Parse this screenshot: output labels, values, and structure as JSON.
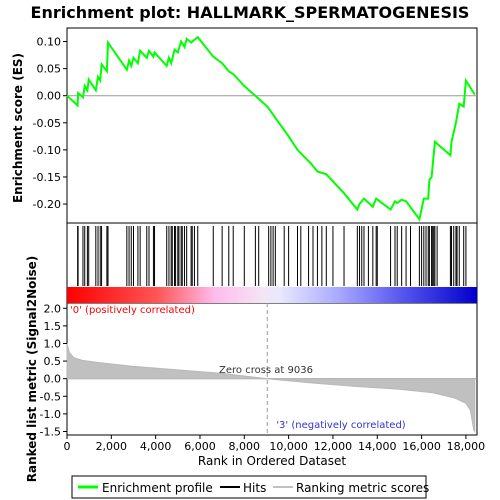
{
  "chart_data": {
    "type": "line",
    "title": "Enrichment plot: HALLMARK_SPERMATOGENESIS",
    "xlabel": "Rank in Ordered Dataset",
    "xlim": [
      0,
      18500
    ],
    "x_ticks": [
      "0",
      "2,000",
      "4,000",
      "6,000",
      "8,000",
      "10,000",
      "12,000",
      "14,000",
      "16,000",
      "18,000"
    ],
    "x_tick_values": [
      0,
      2000,
      4000,
      6000,
      8000,
      10000,
      12000,
      14000,
      16000,
      18000
    ],
    "es_panel": {
      "ylabel": "Enrichment score (ES)",
      "ylim": [
        -0.235,
        0.125
      ],
      "y_ticks": [
        "0.10",
        "0.05",
        "0.00",
        "-0.05",
        "-0.10",
        "-0.15",
        "-0.20"
      ],
      "y_tick_values": [
        0.1,
        0.05,
        0.0,
        -0.05,
        -0.1,
        -0.15,
        -0.2
      ],
      "grid": false,
      "series": [
        {
          "name": "Enrichment profile",
          "color": "#00ff00",
          "points": [
            [
              0,
              0.0
            ],
            [
              480,
              -0.018
            ],
            [
              500,
              0.005
            ],
            [
              720,
              -0.003
            ],
            [
              800,
              0.018
            ],
            [
              920,
              0.01
            ],
            [
              980,
              0.03
            ],
            [
              1300,
              0.01
            ],
            [
              1400,
              0.035
            ],
            [
              1500,
              0.028
            ],
            [
              1560,
              0.058
            ],
            [
              1800,
              0.045
            ],
            [
              1850,
              0.098
            ],
            [
              2700,
              0.048
            ],
            [
              2800,
              0.065
            ],
            [
              2900,
              0.055
            ],
            [
              3000,
              0.07
            ],
            [
              3200,
              0.06
            ],
            [
              3300,
              0.083
            ],
            [
              3600,
              0.07
            ],
            [
              3700,
              0.083
            ],
            [
              3900,
              0.072
            ],
            [
              3950,
              0.08
            ],
            [
              4500,
              0.055
            ],
            [
              4600,
              0.07
            ],
            [
              4700,
              0.06
            ],
            [
              4850,
              0.085
            ],
            [
              5000,
              0.08
            ],
            [
              5150,
              0.1
            ],
            [
              5300,
              0.09
            ],
            [
              5400,
              0.105
            ],
            [
              5600,
              0.098
            ],
            [
              5650,
              0.1
            ],
            [
              5900,
              0.108
            ],
            [
              6600,
              0.072
            ],
            [
              7000,
              0.06
            ],
            [
              7300,
              0.045
            ],
            [
              7500,
              0.04
            ],
            [
              8000,
              0.018
            ],
            [
              9036,
              -0.02
            ],
            [
              10000,
              -0.075
            ],
            [
              10400,
              -0.1
            ],
            [
              11000,
              -0.125
            ],
            [
              11300,
              -0.14
            ],
            [
              11700,
              -0.145
            ],
            [
              12500,
              -0.18
            ],
            [
              13100,
              -0.21
            ],
            [
              13200,
              -0.2
            ],
            [
              13400,
              -0.19
            ],
            [
              13800,
              -0.205
            ],
            [
              13950,
              -0.19
            ],
            [
              14600,
              -0.21
            ],
            [
              14800,
              -0.195
            ],
            [
              14900,
              -0.198
            ],
            [
              15100,
              -0.192
            ],
            [
              15300,
              -0.195
            ],
            [
              15900,
              -0.228
            ],
            [
              16100,
              -0.19
            ],
            [
              16300,
              -0.19
            ],
            [
              16350,
              -0.155
            ],
            [
              16450,
              -0.15
            ],
            [
              16600,
              -0.085
            ],
            [
              17300,
              -0.11
            ],
            [
              17350,
              -0.085
            ],
            [
              17550,
              -0.05
            ],
            [
              17700,
              -0.015
            ],
            [
              17900,
              -0.02
            ],
            [
              18000,
              0.028
            ],
            [
              18400,
              0.002
            ]
          ]
        }
      ]
    },
    "hits": {
      "name": "Hits",
      "color": "#000000",
      "positions": [
        480,
        500,
        720,
        800,
        920,
        980,
        1300,
        1400,
        1500,
        1560,
        1800,
        1850,
        2700,
        2800,
        2900,
        3000,
        3200,
        3300,
        3600,
        3700,
        3900,
        3950,
        4500,
        4600,
        4700,
        4750,
        4850,
        4900,
        5000,
        5050,
        5150,
        5200,
        5300,
        5400,
        5600,
        5650,
        5750,
        5900,
        6600,
        7000,
        7300,
        7500,
        8000,
        8500,
        8650,
        9100,
        9200,
        9300,
        9400,
        9800,
        10000,
        10400,
        10550,
        10900,
        11100,
        11300,
        11500,
        11700,
        12000,
        12500,
        13100,
        13200,
        13300,
        13400,
        13600,
        13800,
        13950,
        14000,
        14600,
        14800,
        14900,
        15100,
        15300,
        15500,
        15900,
        16000,
        16100,
        16200,
        16300,
        16350,
        16450,
        16500,
        16550,
        16600,
        16700,
        17300,
        17350,
        17450,
        17550,
        17600,
        17700,
        17900,
        18000
      ]
    },
    "ranking_panel": {
      "ylabel": "Ranked list metric (Signal2Noise)",
      "ylim": [
        -1.6,
        2.15
      ],
      "y_ticks": [
        "2.0",
        "1.5",
        "1.0",
        "0.5",
        "0.0",
        "-0.5",
        "-1.0",
        "-1.5"
      ],
      "y_tick_values": [
        2.0,
        1.5,
        1.0,
        0.5,
        0.0,
        -0.5,
        -1.0,
        -1.5
      ],
      "series": [
        {
          "name": "Ranking metric scores",
          "color": "#c0c0c0",
          "points": [
            [
              0,
              1.0
            ],
            [
              100,
              0.75
            ],
            [
              300,
              0.6
            ],
            [
              700,
              0.52
            ],
            [
              1500,
              0.45
            ],
            [
              3000,
              0.35
            ],
            [
              5000,
              0.25
            ],
            [
              7000,
              0.15
            ],
            [
              9036,
              0.0
            ],
            [
              11000,
              -0.12
            ],
            [
              13000,
              -0.22
            ],
            [
              15000,
              -0.3
            ],
            [
              16500,
              -0.4
            ],
            [
              17500,
              -0.55
            ],
            [
              18000,
              -0.7
            ],
            [
              18200,
              -0.9
            ],
            [
              18350,
              -1.45
            ],
            [
              18400,
              -1.5
            ]
          ]
        }
      ],
      "zero_cross_label": "Zero cross at 9036",
      "zero_cross": 9036,
      "pos_label": "'0' (positively correlated)",
      "neg_label": "'3' (negatively correlated)"
    },
    "legend": {
      "placement": "bottom",
      "entries": [
        {
          "label": "Enrichment profile",
          "color": "#00ff00"
        },
        {
          "label": "Hits",
          "color": "#000000"
        },
        {
          "label": "Ranking metric scores",
          "color": "#c0c0c0"
        }
      ]
    }
  }
}
